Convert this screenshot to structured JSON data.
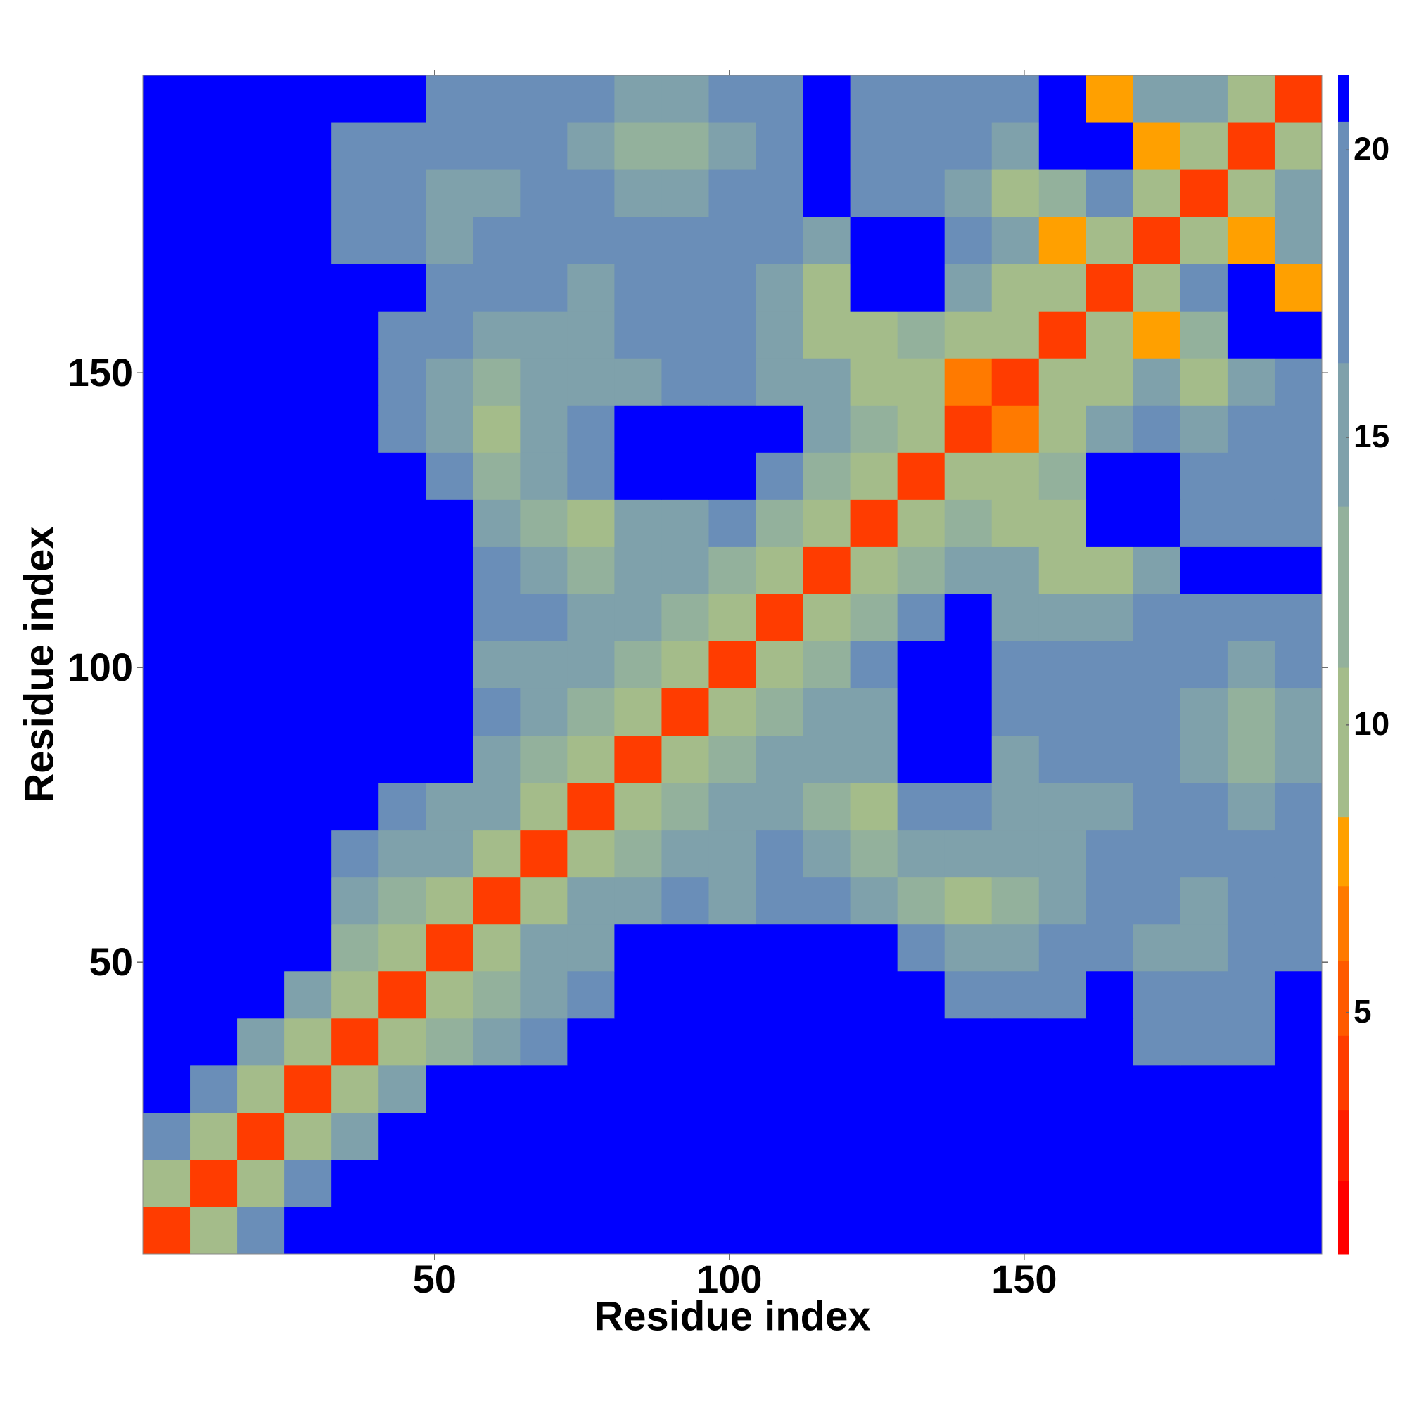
{
  "chart_data": {
    "type": "heatmap",
    "xlabel": "Residue index",
    "ylabel": "Residue index",
    "x": [
      4.5,
      12.5,
      20.5,
      28.5,
      36.5,
      44.5,
      52.5,
      60.5,
      68.5,
      76.5,
      84.5,
      92.5,
      100.5,
      108.5,
      116.5,
      124.5,
      132.5,
      140.5,
      148.5,
      156.5,
      164.5,
      172.5,
      180.5,
      188.5,
      196.5
    ],
    "y": [
      4.5,
      12.5,
      20.5,
      28.5,
      36.5,
      44.5,
      52.5,
      60.5,
      68.5,
      76.5,
      84.5,
      92.5,
      100.5,
      108.5,
      116.5,
      124.5,
      132.5,
      140.5,
      148.5,
      156.5,
      164.5,
      172.5,
      180.5,
      188.5,
      196.5
    ],
    "z": [
      [
        4,
        10,
        17,
        21,
        21,
        21,
        21,
        21,
        21,
        21,
        21,
        21,
        21,
        21,
        21,
        21,
        21,
        21,
        21,
        21,
        21,
        21,
        21,
        21,
        21
      ],
      [
        10,
        4,
        10,
        17,
        21,
        21,
        21,
        21,
        21,
        21,
        21,
        21,
        21,
        21,
        21,
        21,
        21,
        21,
        21,
        21,
        21,
        21,
        21,
        21,
        21
      ],
      [
        17,
        10,
        4,
        10,
        16,
        21,
        21,
        21,
        21,
        21,
        21,
        21,
        21,
        21,
        21,
        21,
        21,
        21,
        21,
        21,
        21,
        21,
        21,
        21,
        21
      ],
      [
        21,
        17,
        10,
        4,
        10,
        16,
        21,
        21,
        21,
        21,
        21,
        21,
        21,
        21,
        21,
        21,
        21,
        21,
        21,
        21,
        21,
        21,
        21,
        21,
        21
      ],
      [
        21,
        21,
        16,
        10,
        4,
        10,
        13,
        14,
        18,
        21,
        21,
        21,
        21,
        21,
        21,
        21,
        21,
        21,
        21,
        21,
        21,
        18,
        19,
        20,
        21
      ],
      [
        21,
        21,
        21,
        16,
        10,
        4,
        10,
        13,
        15,
        18,
        21,
        21,
        21,
        21,
        21,
        21,
        21,
        18,
        17,
        18,
        21,
        18,
        18,
        19,
        21
      ],
      [
        21,
        21,
        21,
        21,
        13,
        10,
        4,
        10,
        14,
        16,
        21,
        21,
        21,
        21,
        21,
        21,
        17,
        14,
        16,
        17,
        19,
        16,
        16,
        17,
        19
      ],
      [
        21,
        21,
        21,
        21,
        14,
        13,
        10,
        4,
        10,
        14,
        15,
        18,
        16,
        18,
        17,
        16,
        13,
        11,
        13,
        15,
        18,
        17,
        16,
        17,
        19
      ],
      [
        21,
        21,
        21,
        21,
        18,
        15,
        14,
        10,
        4,
        10,
        13,
        14,
        15,
        17,
        15,
        12,
        14,
        15,
        16,
        15,
        18,
        18,
        17,
        18,
        18
      ],
      [
        21,
        21,
        21,
        21,
        21,
        18,
        16,
        14,
        10,
        4,
        10,
        12,
        14,
        14,
        12,
        11,
        18,
        19,
        16,
        15,
        16,
        19,
        17,
        16,
        18
      ],
      [
        21,
        21,
        21,
        21,
        21,
        21,
        21,
        15,
        13,
        10,
        4,
        10,
        12,
        15,
        14,
        14,
        21,
        21,
        16,
        17,
        17,
        18,
        15,
        12,
        16
      ],
      [
        21,
        21,
        21,
        21,
        21,
        21,
        21,
        18,
        14,
        12,
        10,
        4,
        10,
        12,
        16,
        15,
        21,
        21,
        17,
        17,
        18,
        17,
        15,
        13,
        16
      ],
      [
        21,
        21,
        21,
        21,
        21,
        21,
        21,
        16,
        15,
        14,
        12,
        10,
        4,
        10,
        13,
        17,
        21,
        21,
        18,
        18,
        19,
        18,
        17,
        15,
        17
      ],
      [
        21,
        21,
        21,
        21,
        21,
        21,
        21,
        18,
        17,
        14,
        15,
        12,
        10,
        4,
        10,
        13,
        17,
        21,
        14,
        14,
        14,
        18,
        19,
        17,
        19
      ],
      [
        21,
        21,
        21,
        21,
        21,
        21,
        21,
        17,
        15,
        12,
        14,
        16,
        13,
        10,
        4,
        10,
        12,
        15,
        14,
        9,
        11,
        15,
        21,
        21,
        21
      ],
      [
        21,
        21,
        21,
        21,
        21,
        21,
        21,
        16,
        12,
        11,
        14,
        15,
        17,
        13,
        10,
        4,
        10,
        12,
        9,
        9,
        21,
        21,
        19,
        18,
        18
      ],
      [
        21,
        21,
        21,
        21,
        21,
        21,
        17,
        13,
        14,
        18,
        21,
        21,
        21,
        17,
        12,
        10,
        4,
        10,
        9,
        13,
        21,
        21,
        18,
        18,
        19
      ],
      [
        21,
        21,
        21,
        21,
        21,
        18,
        14,
        11,
        15,
        19,
        21,
        21,
        21,
        21,
        15,
        12,
        10,
        4,
        7,
        10,
        16,
        17,
        14,
        17,
        17
      ],
      [
        21,
        21,
        21,
        21,
        21,
        17,
        16,
        13,
        16,
        16,
        16,
        17,
        18,
        14,
        14,
        9,
        9,
        7,
        4,
        10,
        11,
        14,
        9,
        16,
        17
      ],
      [
        21,
        21,
        21,
        21,
        21,
        18,
        17,
        15,
        15,
        15,
        17,
        17,
        18,
        14,
        9,
        9,
        13,
        10,
        10,
        4,
        10,
        8,
        13,
        21,
        21
      ],
      [
        21,
        21,
        21,
        21,
        21,
        21,
        19,
        18,
        18,
        16,
        17,
        18,
        19,
        14,
        11,
        21,
        21,
        16,
        11,
        10,
        4,
        10,
        17,
        21,
        8
      ],
      [
        21,
        21,
        21,
        21,
        18,
        18,
        16,
        17,
        18,
        19,
        18,
        17,
        18,
        18,
        15,
        21,
        21,
        17,
        14,
        8,
        10,
        4,
        10,
        8,
        14
      ],
      [
        21,
        21,
        21,
        21,
        19,
        18,
        16,
        16,
        17,
        17,
        15,
        15,
        17,
        19,
        21,
        19,
        18,
        14,
        9,
        13,
        17,
        10,
        4,
        10,
        15
      ],
      [
        21,
        21,
        21,
        21,
        20,
        19,
        17,
        17,
        18,
        16,
        12,
        13,
        15,
        17,
        21,
        18,
        18,
        17,
        16,
        21,
        21,
        8,
        10,
        4,
        10
      ],
      [
        21,
        21,
        21,
        21,
        21,
        21,
        19,
        19,
        18,
        18,
        16,
        16,
        17,
        19,
        21,
        18,
        19,
        17,
        17,
        21,
        8,
        14,
        15,
        10,
        4
      ]
    ],
    "xlim": [
      0.5,
      200.5
    ],
    "ylim": [
      0.5,
      200.5
    ],
    "xticks": [
      50,
      100,
      150
    ],
    "yticks": [
      50,
      100,
      150
    ],
    "zlim": [
      0.8,
      21.3
    ],
    "zticks": [
      5,
      10,
      15,
      20
    ],
    "colorscale": [
      {
        "max": 2.07,
        "color": "#ff0000"
      },
      {
        "max": 3.3,
        "color": "#ff1e00"
      },
      {
        "max": 4.6,
        "color": "#ff3c00"
      },
      {
        "max": 5.9,
        "color": "#ff5a00"
      },
      {
        "max": 7.2,
        "color": "#ff7a00"
      },
      {
        "max": 8.4,
        "color": "#ffa000"
      },
      {
        "max": 11,
        "color": "#a4bc8a"
      },
      {
        "max": 13.8,
        "color": "#93b19c"
      },
      {
        "max": 16.3,
        "color": "#7fa1ab"
      },
      {
        "max": 20.5,
        "color": "#6a8eb8"
      },
      {
        "max": 21.3,
        "color": "#0000ff"
      }
    ]
  }
}
